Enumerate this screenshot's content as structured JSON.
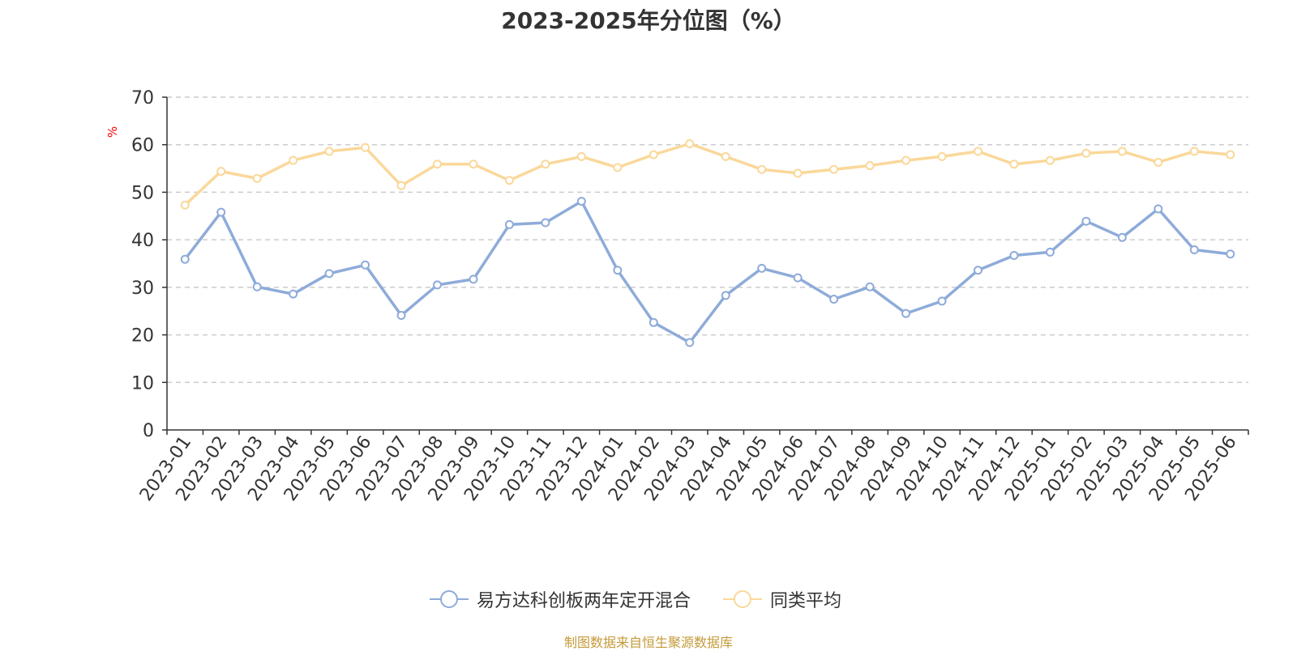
{
  "chart_data": {
    "type": "line",
    "title": "2023-2025年分位图（%）",
    "ylabel": "%",
    "xlabel": "",
    "ylim": [
      0,
      70
    ],
    "yticks": [
      0,
      10,
      20,
      30,
      40,
      50,
      60,
      70
    ],
    "grid": "horizontal dashed",
    "legend_position": "bottom",
    "categories": [
      "2023-01",
      "2023-02",
      "2023-03",
      "2023-04",
      "2023-05",
      "2023-06",
      "2023-07",
      "2023-08",
      "2023-09",
      "2023-10",
      "2023-11",
      "2023-12",
      "2024-01",
      "2024-02",
      "2024-03",
      "2024-04",
      "2024-05",
      "2024-06",
      "2024-07",
      "2024-08",
      "2024-09",
      "2024-10",
      "2024-11",
      "2024-12",
      "2025-01",
      "2025-02",
      "2025-03",
      "2025-04",
      "2025-05",
      "2025-06"
    ],
    "series": [
      {
        "name": "易方达科创板两年定开混合",
        "color": "#8eabd9",
        "values": [
          35.9,
          45.8,
          30.1,
          28.6,
          32.9,
          34.7,
          24.1,
          30.5,
          31.7,
          43.2,
          43.6,
          48.1,
          33.6,
          22.6,
          18.4,
          28.3,
          34.0,
          32.0,
          27.5,
          30.1,
          24.5,
          27.1,
          33.6,
          36.7,
          37.4,
          43.9,
          40.5,
          46.5,
          37.9,
          37.0
        ]
      },
      {
        "name": "同类平均",
        "color": "#fad89a",
        "values": [
          47.3,
          54.4,
          52.9,
          56.7,
          58.6,
          59.4,
          51.4,
          55.9,
          55.9,
          52.5,
          55.9,
          57.5,
          55.2,
          57.9,
          60.2,
          57.5,
          54.8,
          54.0,
          54.8,
          55.6,
          56.7,
          57.5,
          58.6,
          55.9,
          56.7,
          58.2,
          58.6,
          56.3,
          58.6,
          57.9
        ]
      }
    ]
  },
  "footer": {
    "source": "制图数据来自恒生聚源数据库"
  }
}
